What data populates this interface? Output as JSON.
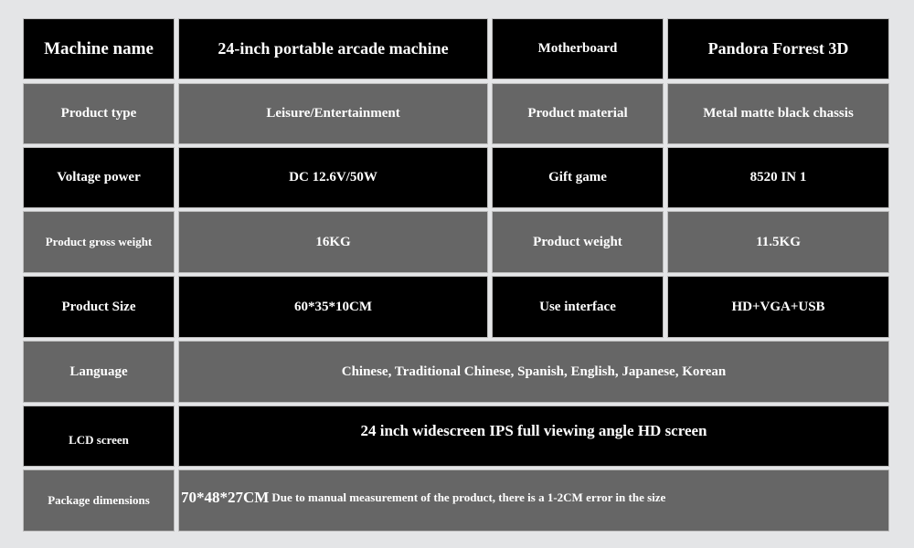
{
  "rows": [
    {
      "label1": "Machine name",
      "value1": "24-inch portable arcade machine",
      "label2": "Motherboard",
      "value2": "Pandora Forrest 3D"
    },
    {
      "label1": "Product type",
      "value1": "Leisure/Entertainment",
      "label2": "Product material",
      "value2": "Metal matte black chassis"
    },
    {
      "label1": "Voltage power",
      "value1": "DC 12.6V/50W",
      "label2": "Gift game",
      "value2": "8520 IN 1"
    },
    {
      "label1": "Product gross weight",
      "value1": "16KG",
      "label2": "Product weight",
      "value2": "11.5KG"
    },
    {
      "label1": "Product Size",
      "value1": "60*35*10CM",
      "label2": "Use interface",
      "value2": "HD+VGA+USB"
    }
  ],
  "wide_rows": [
    {
      "label": "Language",
      "value": "Chinese, Traditional Chinese, Spanish, English, Japanese, Korean"
    },
    {
      "label": "LCD screen",
      "value": "24 inch widescreen IPS full viewing angle HD screen"
    }
  ],
  "package": {
    "label": "Package dimensions",
    "value": "70*48*27CM",
    "note": "Due to manual measurement of the product, there is a 1-2CM error in the size"
  },
  "colors": {
    "background": "#e4e5e7",
    "dark_row": "#000000",
    "grey_row": "#666666"
  }
}
